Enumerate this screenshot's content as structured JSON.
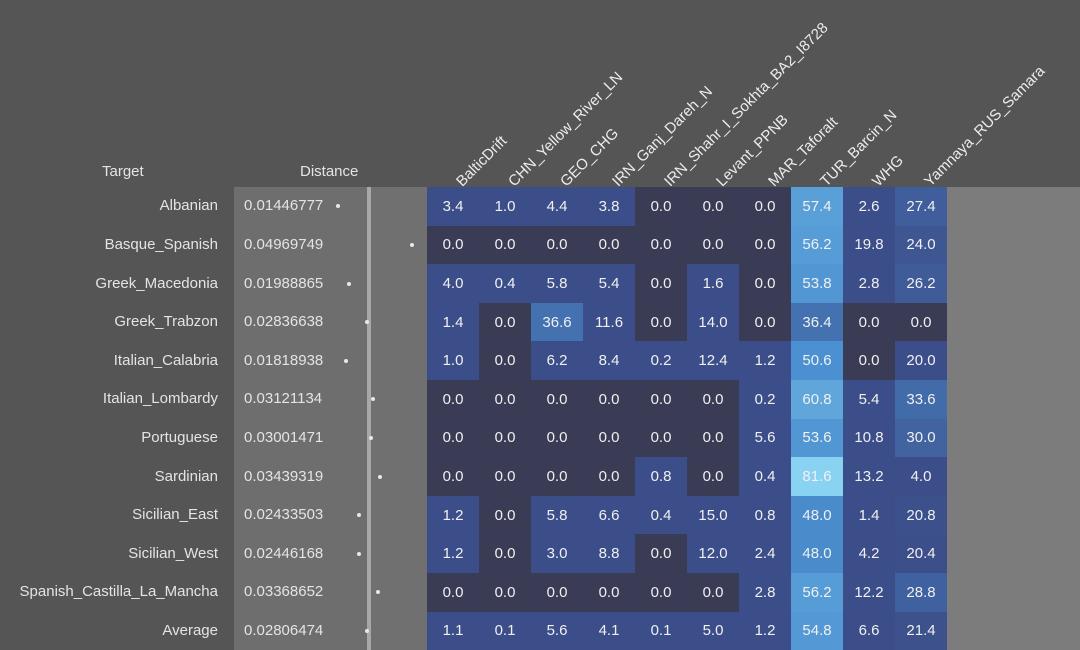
{
  "header": {
    "target_label": "Target",
    "distance_label": "Distance"
  },
  "chart_data": {
    "type": "heatmap",
    "columns": [
      "BalticDrift",
      "CHN_Yellow_River_LN",
      "GEO_CHG",
      "IRN_Ganj_Dareh_N",
      "IRN_Shahr_I_Sokhta_BA2_I8728",
      "Levant_PPNB",
      "MAR_Taforalt",
      "TUR_Barcin_N",
      "WHG",
      "Yamnaya_RUS_Samara"
    ],
    "rows": [
      {
        "target": "Albanian",
        "distance": "0.01446777",
        "values": [
          "3.4",
          "1.0",
          "4.4",
          "3.8",
          "0.0",
          "0.0",
          "0.0",
          "57.4",
          "2.6",
          "27.4"
        ]
      },
      {
        "target": "Basque_Spanish",
        "distance": "0.04969749",
        "values": [
          "0.0",
          "0.0",
          "0.0",
          "0.0",
          "0.0",
          "0.0",
          "0.0",
          "56.2",
          "19.8",
          "24.0"
        ]
      },
      {
        "target": "Greek_Macedonia",
        "distance": "0.01988865",
        "values": [
          "4.0",
          "0.4",
          "5.8",
          "5.4",
          "0.0",
          "1.6",
          "0.0",
          "53.8",
          "2.8",
          "26.2"
        ]
      },
      {
        "target": "Greek_Trabzon",
        "distance": "0.02836638",
        "values": [
          "1.4",
          "0.0",
          "36.6",
          "11.6",
          "0.0",
          "14.0",
          "0.0",
          "36.4",
          "0.0",
          "0.0"
        ]
      },
      {
        "target": "Italian_Calabria",
        "distance": "0.01818938",
        "values": [
          "1.0",
          "0.0",
          "6.2",
          "8.4",
          "0.2",
          "12.4",
          "1.2",
          "50.6",
          "0.0",
          "20.0"
        ]
      },
      {
        "target": "Italian_Lombardy",
        "distance": "0.03121134",
        "values": [
          "0.0",
          "0.0",
          "0.0",
          "0.0",
          "0.0",
          "0.0",
          "0.2",
          "60.8",
          "5.4",
          "33.6"
        ]
      },
      {
        "target": "Portuguese",
        "distance": "0.03001471",
        "values": [
          "0.0",
          "0.0",
          "0.0",
          "0.0",
          "0.0",
          "0.0",
          "5.6",
          "53.6",
          "10.8",
          "30.0"
        ]
      },
      {
        "target": "Sardinian",
        "distance": "0.03439319",
        "values": [
          "0.0",
          "0.0",
          "0.0",
          "0.0",
          "0.8",
          "0.0",
          "0.4",
          "81.6",
          "13.2",
          "4.0"
        ]
      },
      {
        "target": "Sicilian_East",
        "distance": "0.02433503",
        "values": [
          "1.2",
          "0.0",
          "5.8",
          "6.6",
          "0.4",
          "15.0",
          "0.8",
          "48.0",
          "1.4",
          "20.8"
        ]
      },
      {
        "target": "Sicilian_West",
        "distance": "0.02446168",
        "values": [
          "1.2",
          "0.0",
          "3.0",
          "8.8",
          "0.0",
          "12.0",
          "2.4",
          "48.0",
          "4.2",
          "20.4"
        ]
      },
      {
        "target": "Spanish_Castilla_La_Mancha",
        "distance": "0.03368652",
        "values": [
          "0.0",
          "0.0",
          "0.0",
          "0.0",
          "0.0",
          "0.0",
          "2.8",
          "56.2",
          "12.2",
          "28.8"
        ]
      },
      {
        "target": "Average",
        "distance": "0.02806474",
        "values": [
          "1.1",
          "0.1",
          "5.6",
          "4.1",
          "0.1",
          "5.0",
          "1.2",
          "54.8",
          "6.6",
          "21.4"
        ]
      }
    ],
    "colors": {
      "zero": "#3a3b55",
      "low": "#3c4e8a",
      "mid": "#4a8fd0",
      "high": "#8ad3f2",
      "page_bg": "#555555",
      "distance_panel": "#6e6e6e"
    }
  }
}
